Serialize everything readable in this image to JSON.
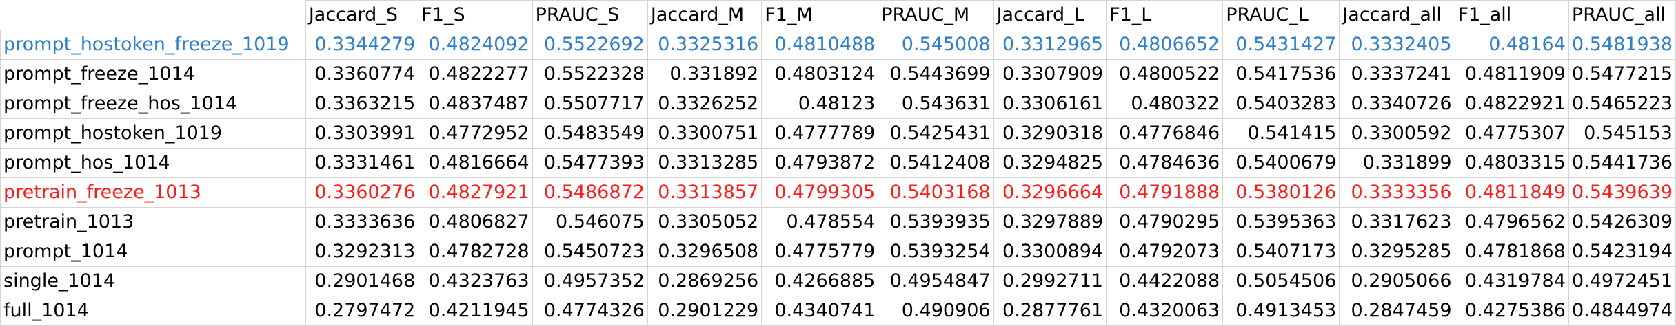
{
  "table": {
    "columns": [
      "Jaccard_S",
      "F1_S",
      "PRAUC_S",
      "Jaccard_M",
      "F1_M",
      "PRAUC_M",
      "Jaccard_L",
      "F1_L",
      "PRAUC_L",
      "Jaccard_all",
      "F1_all",
      "PRAUC_all"
    ],
    "colors": {
      "blue": "#2f7fc8",
      "red": "#ff1a1a",
      "black": "#000000"
    },
    "rows": [
      {
        "name": "prompt_hostoken_freeze_1019",
        "color": "blue",
        "values": [
          "0.3344279",
          "0.4824092",
          "0.5522692",
          "0.3325316",
          "0.4810488",
          "0.545008",
          "0.3312965",
          "0.4806652",
          "0.5431427",
          "0.3332405",
          "0.48164",
          "0.5481938"
        ]
      },
      {
        "name": "prompt_freeze_1014",
        "color": "black",
        "values": [
          "0.3360774",
          "0.4822277",
          "0.5522328",
          "0.331892",
          "0.4803124",
          "0.5443699",
          "0.3307909",
          "0.4800522",
          "0.5417536",
          "0.3337241",
          "0.4811909",
          "0.5477215"
        ]
      },
      {
        "name": "prompt_freeze_hos_1014",
        "color": "black",
        "values": [
          "0.3363215",
          "0.4837487",
          "0.5507717",
          "0.3326252",
          "0.48123",
          "0.543631",
          "0.3306161",
          "0.480322",
          "0.5403283",
          "0.3340726",
          "0.4822921",
          "0.5465223"
        ]
      },
      {
        "name": "prompt_hostoken_1019",
        "color": "black",
        "values": [
          "0.3303991",
          "0.4772952",
          "0.5483549",
          "0.3300751",
          "0.4777789",
          "0.5425431",
          "0.3290318",
          "0.4776846",
          "0.541415",
          "0.3300592",
          "0.4775307",
          "0.545153"
        ]
      },
      {
        "name": "prompt_hos_1014",
        "color": "black",
        "values": [
          "0.3331461",
          "0.4816664",
          "0.5477393",
          "0.3313285",
          "0.4793872",
          "0.5412408",
          "0.3294825",
          "0.4784636",
          "0.5400679",
          "0.331899",
          "0.4803315",
          "0.5441736"
        ]
      },
      {
        "name": "pretrain_freeze_1013",
        "color": "red",
        "values": [
          "0.3360276",
          "0.4827921",
          "0.5486872",
          "0.3313857",
          "0.4799305",
          "0.5403168",
          "0.3296664",
          "0.4791888",
          "0.5380126",
          "0.3333356",
          "0.4811849",
          "0.5439639"
        ]
      },
      {
        "name": "pretrain_1013",
        "color": "black",
        "values": [
          "0.3333636",
          "0.4806827",
          "0.546075",
          "0.3305052",
          "0.478554",
          "0.5393935",
          "0.3297889",
          "0.4790295",
          "0.5395363",
          "0.3317623",
          "0.4796562",
          "0.5426309"
        ]
      },
      {
        "name": "prompt_1014",
        "color": "black",
        "values": [
          "0.3292313",
          "0.4782728",
          "0.5450723",
          "0.3296508",
          "0.4775779",
          "0.5393254",
          "0.3300894",
          "0.4792073",
          "0.5407173",
          "0.3295285",
          "0.4781868",
          "0.5423194"
        ]
      },
      {
        "name": "single_1014",
        "color": "black",
        "values": [
          "0.2901468",
          "0.4323763",
          "0.4957352",
          "0.2869256",
          "0.4266885",
          "0.4954847",
          "0.2992711",
          "0.4422088",
          "0.5054506",
          "0.2905066",
          "0.4319784",
          "0.4972451"
        ]
      },
      {
        "name": "full_1014",
        "color": "black",
        "values": [
          "0.2797472",
          "0.4211945",
          "0.4774326",
          "0.2901229",
          "0.4340741",
          "0.490906",
          "0.2877761",
          "0.4320063",
          "0.4913453",
          "0.2847459",
          "0.4275386",
          "0.4844974"
        ]
      }
    ]
  }
}
